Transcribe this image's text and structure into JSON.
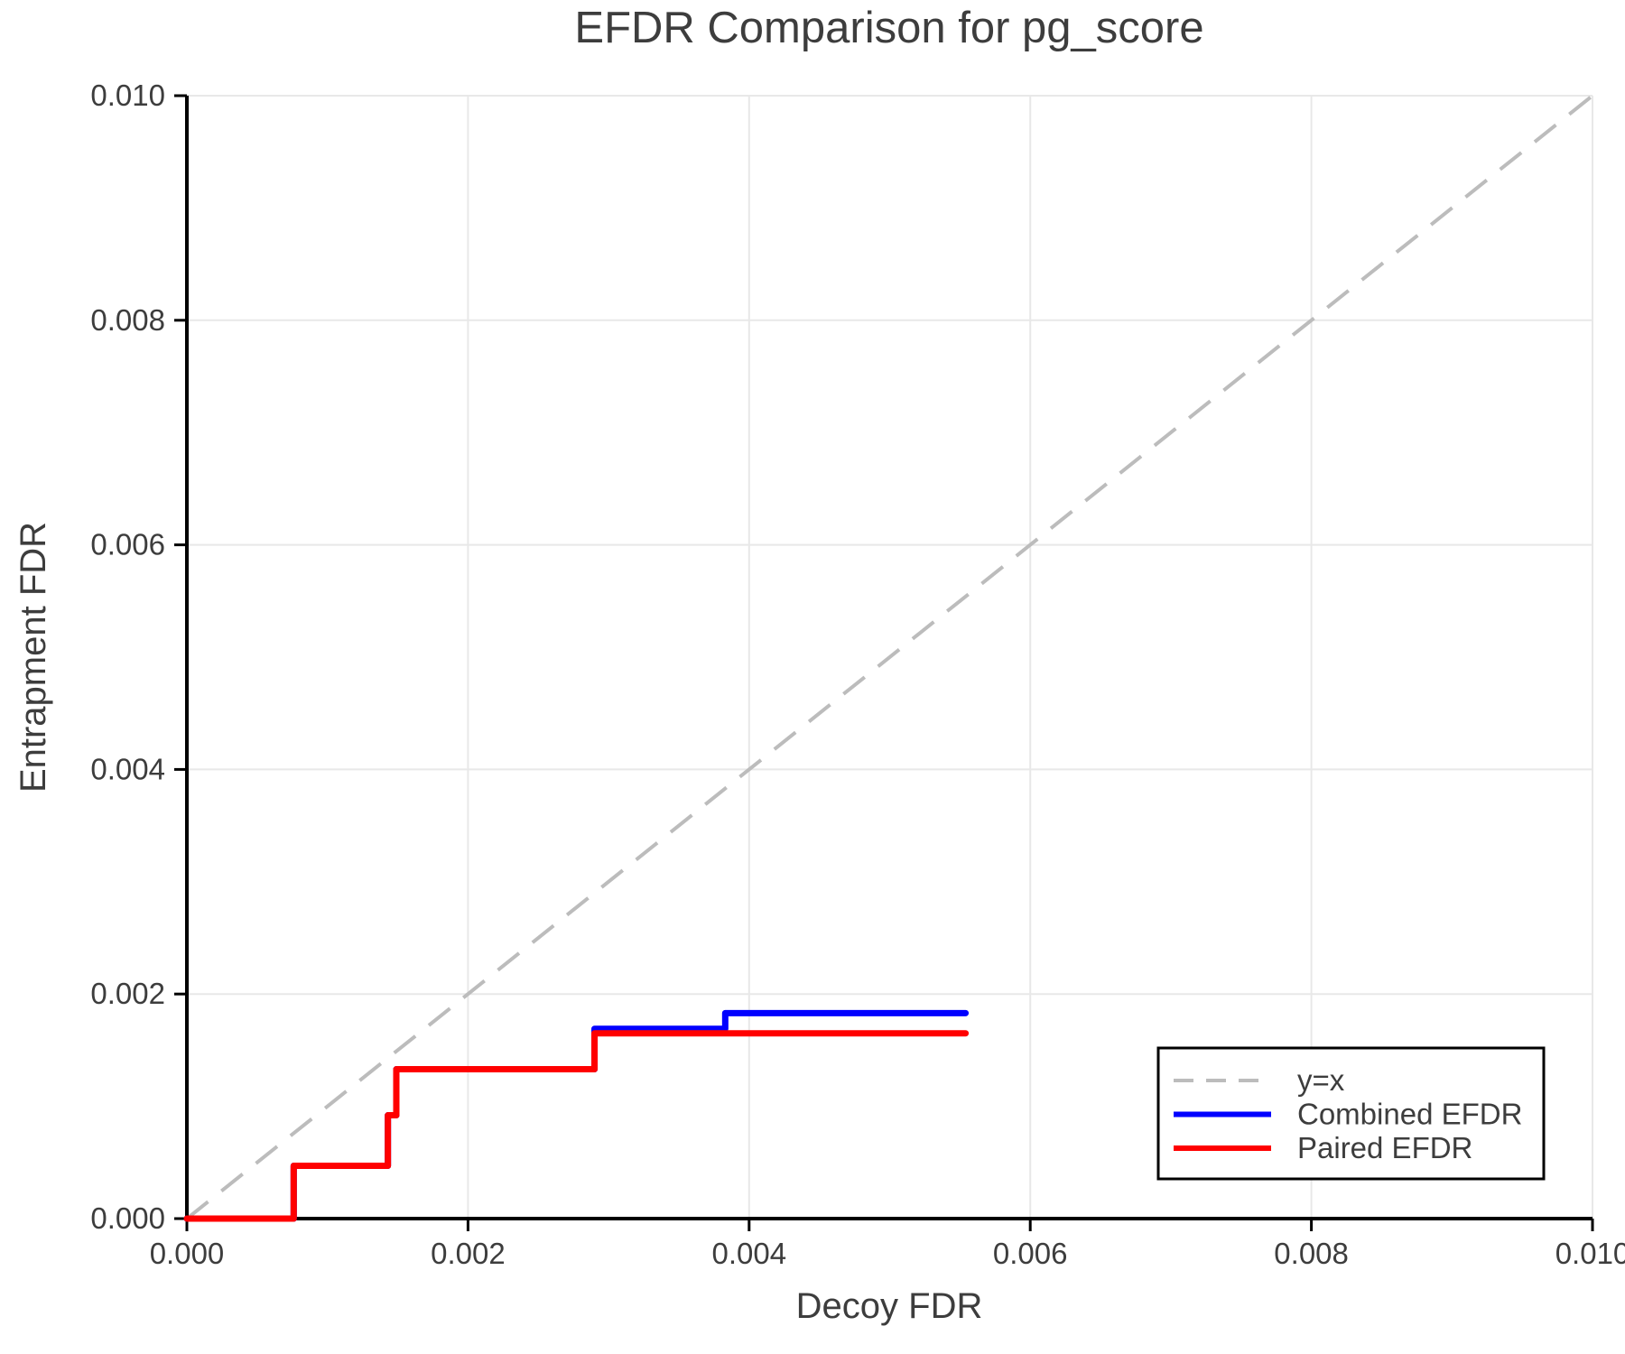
{
  "chart_data": {
    "type": "line",
    "subtype": "step-post",
    "title": "EFDR Comparison for pg_score",
    "xlabel": "Decoy FDR",
    "ylabel": "Entrapment FDR",
    "xlim": [
      0,
      0.01
    ],
    "ylim": [
      0,
      0.01
    ],
    "grid": true,
    "x_ticks": {
      "values": [
        0,
        0.002,
        0.004,
        0.006,
        0.008,
        0.01
      ],
      "labels": [
        "0.000",
        "0.002",
        "0.004",
        "0.006",
        "0.008",
        "0.010"
      ]
    },
    "y_ticks": {
      "values": [
        0,
        0.002,
        0.004,
        0.006,
        0.008,
        0.01
      ],
      "labels": [
        "0.000",
        "0.002",
        "0.004",
        "0.006",
        "0.008",
        "0.010"
      ]
    },
    "reference_line": {
      "label": "y=x",
      "from": [
        0,
        0
      ],
      "to": [
        0.01,
        0.01
      ],
      "color": "#bcbcbc",
      "dashed": true
    },
    "series": [
      {
        "name": "Combined EFDR",
        "color": "#0000ff",
        "x": [
          0,
          0.00076,
          0.00143,
          0.00149,
          0.0029,
          0.00383,
          0.00554
        ],
        "y": [
          0,
          0.00047,
          0.00092,
          0.00133,
          0.00169,
          0.00183,
          0.00183
        ]
      },
      {
        "name": "Paired EFDR",
        "color": "#ff0000",
        "x": [
          0,
          0.00076,
          0.00143,
          0.00149,
          0.0029,
          0.00554
        ],
        "y": [
          0,
          0.00047,
          0.00092,
          0.00133,
          0.00165,
          0.00165
        ]
      }
    ],
    "legend": {
      "position": "bottom-right",
      "entries": [
        {
          "label": "y=x",
          "color": "#bcbcbc",
          "dashed": true
        },
        {
          "label": "Combined EFDR",
          "color": "#0000ff",
          "dashed": false
        },
        {
          "label": "Paired EFDR",
          "color": "#ff0000",
          "dashed": false
        }
      ]
    },
    "colors": {
      "text": "#3d3d3d",
      "spine": "#000000",
      "grid": "#e8e8e8",
      "background": "#ffffff"
    }
  }
}
